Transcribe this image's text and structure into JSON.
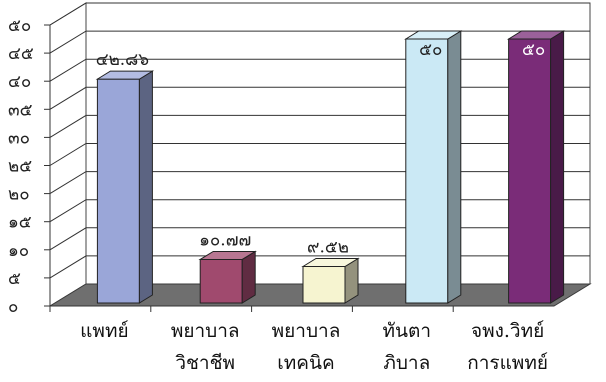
{
  "chart_data": {
    "type": "bar",
    "style": "3d-column",
    "title": "",
    "xlabel": "",
    "ylabel": "",
    "ylim": [
      0,
      50
    ],
    "grid": true,
    "legend": "none",
    "yticks": [
      "๕๐",
      "๔๕",
      "๔๐",
      "๓๕",
      "๓๐",
      "๒๕",
      "๒๐",
      "๑๕",
      "๑๐",
      "๕",
      "๐"
    ],
    "categories": [
      [
        "แพทย์"
      ],
      [
        "พยาบาล",
        "วิชาชีพ"
      ],
      [
        "พยาบาล",
        "เทคนิค"
      ],
      [
        "ทันตา",
        "ภิบาล"
      ],
      [
        "จพง.วิทย์",
        "การแพทย์"
      ]
    ],
    "values": [
      42.86,
      10.77,
      9.52,
      50,
      50
    ],
    "data_labels": [
      "๔๒.๘๖",
      "๑๐.๗๗",
      "๙.๕๒",
      "๕๐",
      "๕๐"
    ],
    "colors": [
      "#9aa6d8",
      "#a04a6e",
      "#f6f4d0",
      "#cbe9f5",
      "#7a2c78"
    ],
    "label_colors": [
      "#222222",
      "#222222",
      "#222222",
      "#222222",
      "#ffffff"
    ]
  }
}
